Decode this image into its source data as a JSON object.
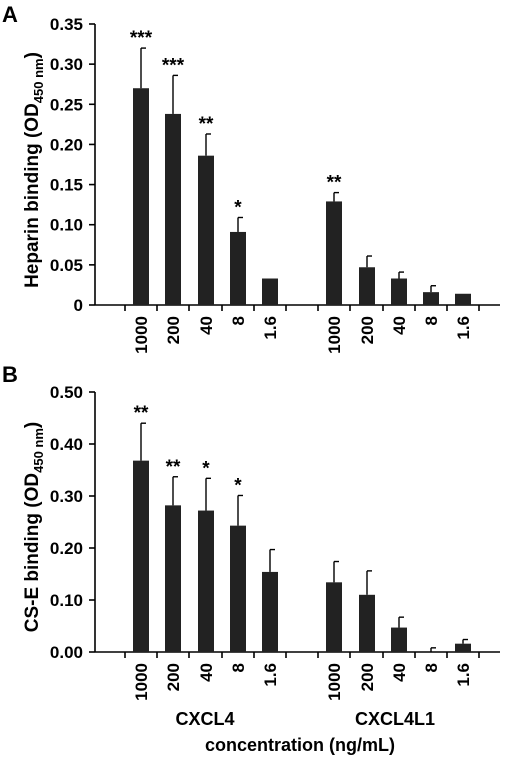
{
  "chart_data": [
    {
      "panel": "A",
      "type": "bar",
      "ylabel_main": "Heparin binding (OD",
      "ylabel_sub": "450 nm",
      "ylabel_end": ")",
      "ylim": [
        0,
        0.35
      ],
      "yticks": [
        "0",
        "0.05",
        "0.10",
        "0.15",
        "0.20",
        "0.25",
        "0.30",
        "0.35"
      ],
      "yticks_values": [
        0,
        0.05,
        0.1,
        0.15,
        0.2,
        0.25,
        0.3,
        0.35
      ],
      "categories": [
        "1000",
        "200",
        "40",
        "8",
        "1.6",
        "1000",
        "200",
        "40",
        "8",
        "1.6"
      ],
      "groups": [
        "CXCL4",
        "CXCL4",
        "CXCL4",
        "CXCL4",
        "CXCL4",
        "CXCL4L1",
        "CXCL4L1",
        "CXCL4L1",
        "CXCL4L1",
        "CXCL4L1"
      ],
      "values": [
        0.27,
        0.238,
        0.186,
        0.091,
        0.033,
        0.129,
        0.047,
        0.033,
        0.016,
        0.014
      ],
      "errors": [
        0.05,
        0.048,
        0.027,
        0.018,
        0.0,
        0.011,
        0.014,
        0.008,
        0.008,
        0.0
      ],
      "significance": [
        "***",
        "***",
        "**",
        "*",
        "",
        "**",
        "",
        "",
        "",
        ""
      ],
      "grid": false
    },
    {
      "panel": "B",
      "type": "bar",
      "ylabel_main": "CS-E binding (OD",
      "ylabel_sub": "450 nm",
      "ylabel_end": ")",
      "ylim": [
        0,
        0.5
      ],
      "yticks": [
        "0.00",
        "0.10",
        "0.20",
        "0.30",
        "0.40",
        "0.50"
      ],
      "yticks_values": [
        0,
        0.1,
        0.2,
        0.3,
        0.4,
        0.5
      ],
      "categories": [
        "1000",
        "200",
        "40",
        "8",
        "1.6",
        "1000",
        "200",
        "40",
        "8",
        "1.6"
      ],
      "groups": [
        "CXCL4",
        "CXCL4",
        "CXCL4",
        "CXCL4",
        "CXCL4",
        "CXCL4L1",
        "CXCL4L1",
        "CXCL4L1",
        "CXCL4L1",
        "CXCL4L1"
      ],
      "values": [
        0.368,
        0.282,
        0.272,
        0.243,
        0.154,
        0.134,
        0.11,
        0.047,
        0.0,
        0.016
      ],
      "errors": [
        0.072,
        0.055,
        0.062,
        0.058,
        0.043,
        0.04,
        0.046,
        0.02,
        0.008,
        0.008
      ],
      "significance": [
        "**",
        "**",
        "*",
        "*",
        "",
        "",
        "",
        "",
        "",
        ""
      ],
      "grid": false,
      "group_labels": [
        "CXCL4",
        "CXCL4L1"
      ],
      "xlabel": "concentration (ng/mL)"
    }
  ]
}
